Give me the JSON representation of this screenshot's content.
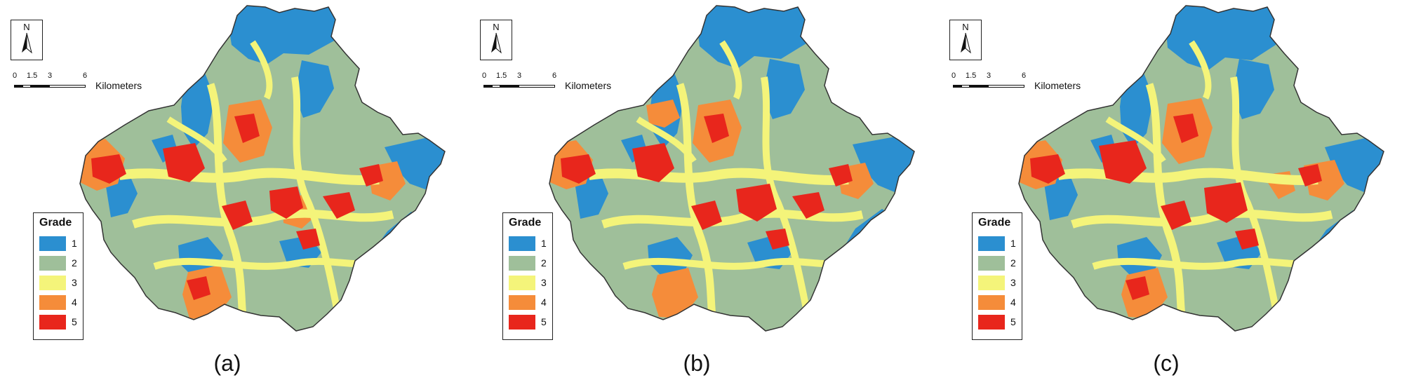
{
  "figure": {
    "panels": [
      {
        "caption": "(a)"
      },
      {
        "caption": "(b)"
      },
      {
        "caption": "(c)"
      }
    ]
  },
  "north_arrow": {
    "label": "N"
  },
  "scale_bar": {
    "ticks": [
      "0",
      "1.5",
      "3",
      "6"
    ],
    "unit": "Kilometers"
  },
  "legend": {
    "title": "Grade",
    "items": [
      {
        "label": "1",
        "color": "#2b8fd0"
      },
      {
        "label": "2",
        "color": "#9fbf9a"
      },
      {
        "label": "3",
        "color": "#f4f47a"
      },
      {
        "label": "4",
        "color": "#f58c3a"
      },
      {
        "label": "5",
        "color": "#e8261c"
      }
    ]
  }
}
